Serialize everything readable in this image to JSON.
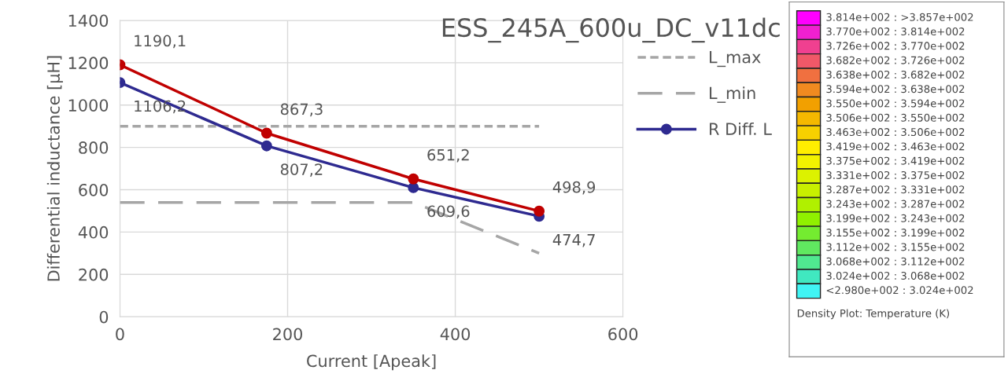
{
  "chart_data": [
    {
      "type": "line",
      "title": "ESS_245A_600u_DC_v11dc",
      "xlabel": "Current [Apeak]",
      "ylabel": "Differential inductance [µH]",
      "xlim": [
        0,
        600
      ],
      "xticks": [
        0,
        200,
        400,
        600
      ],
      "ylim": [
        0,
        1400
      ],
      "yticks": [
        0,
        200,
        400,
        600,
        800,
        1000,
        1200,
        1400
      ],
      "grid": true,
      "legend": "right",
      "series": [
        {
          "name": "L_max",
          "color": "#a6a6a6",
          "x": [
            0,
            500
          ],
          "values": [
            900,
            900
          ],
          "line_style": "dotted",
          "marker": "none"
        },
        {
          "name": "L_min",
          "color": "#a6a6a6",
          "x": [
            0,
            350,
            500
          ],
          "values": [
            540,
            540,
            300
          ],
          "line_style": "dashed",
          "marker": "none"
        },
        {
          "name": "R Diff. L",
          "color": "#2e2a90",
          "x": [
            0,
            175,
            350,
            500
          ],
          "values": [
            1106.2,
            807.2,
            609.6,
            474.7
          ],
          "value_labels": [
            "1106,2",
            "807,2",
            "609,6",
            "474,7"
          ],
          "line_style": "solid",
          "marker": "circle"
        },
        {
          "color": "#c00000",
          "x": [
            0,
            175,
            350,
            500
          ],
          "values": [
            1190.1,
            867.3,
            651.2,
            498.9
          ],
          "value_labels": [
            "1190,1",
            "867,3",
            "651,2",
            "498,9"
          ],
          "line_style": "solid",
          "marker": "circle"
        }
      ]
    },
    {
      "type": "other",
      "annotations": [
        "Density Plot: Temperature (K)"
      ],
      "categories": [
        "3.814e+002 : >3.857e+002",
        "3.770e+002 : 3.814e+002",
        "3.726e+002 : 3.770e+002",
        "3.682e+002 : 3.726e+002",
        "3.638e+002 : 3.682e+002",
        "3.594e+002 : 3.638e+002",
        "3.550e+002 : 3.594e+002",
        "3.506e+002 : 3.550e+002",
        "3.463e+002 : 3.506e+002",
        "3.419e+002 : 3.463e+002",
        "3.375e+002 : 3.419e+002",
        "3.331e+002 : 3.375e+002",
        "3.287e+002 : 3.331e+002",
        "3.243e+002 : 3.287e+002",
        "3.199e+002 : 3.243e+002",
        "3.155e+002 : 3.199e+002",
        "3.112e+002 : 3.155e+002",
        "3.068e+002 : 3.112e+002",
        "3.024e+002 : 3.068e+002",
        "<2.980e+002 : 3.024e+002"
      ],
      "colors": [
        "#ff00ff",
        "#f020d0",
        "#f04090",
        "#f05868",
        "#f07040",
        "#f08a20",
        "#f2a000",
        "#f5b800",
        "#f7d000",
        "#ffee00",
        "#f2f200",
        "#dcf200",
        "#c8f000",
        "#b0f000",
        "#90f000",
        "#74ec30",
        "#60e860",
        "#50e890",
        "#40e8c0",
        "#40f4f4"
      ]
    }
  ]
}
